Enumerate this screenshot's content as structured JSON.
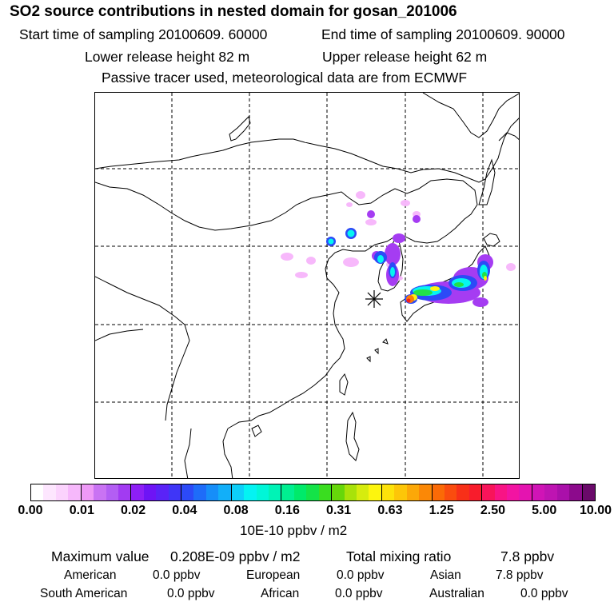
{
  "header": {
    "title": "SO2 source contributions in nested domain for gosan_201006",
    "start_time": "Start time of sampling 20100609. 60000",
    "end_time": "End time of sampling 20100609. 90000",
    "lower_height": "Lower release height   82 m",
    "upper_height": "Upper release height   62 m",
    "tracer_note": "Passive tracer used, meteorological data are from ECMWF"
  },
  "colorbar": {
    "tick_labels": [
      "0.00",
      "0.01",
      "0.02",
      "0.04",
      "0.08",
      "0.16",
      "0.31",
      "0.63",
      "1.25",
      "2.50",
      "5.00",
      "10.00"
    ],
    "units": "10E-10 ppbv / m2",
    "colors": [
      "#ffffff",
      "#fde6fe",
      "#fbd3fd",
      "#f6b8fb",
      "#ee99f7",
      "#c973f3",
      "#b35ef3",
      "#a23bf2",
      "#8d1ff5",
      "#6e14f5",
      "#5a23f7",
      "#3f36f7",
      "#2c4af7",
      "#1e6cf9",
      "#168ef9",
      "#12aff9",
      "#0ecff9",
      "#04f3f3",
      "#00f6d8",
      "#00f3b6",
      "#00ef91",
      "#00ea6a",
      "#14e348",
      "#3add20",
      "#66d70a",
      "#a8e20a",
      "#d6ec0e",
      "#fdf50e",
      "#fde20a",
      "#fdc608",
      "#fca808",
      "#fb8806",
      "#fb6a06",
      "#fa4c0e",
      "#f83018",
      "#f81c2c",
      "#f8145a",
      "#f81485",
      "#f214a2",
      "#e414b0",
      "#d014b6",
      "#be14b2",
      "#aa10aa",
      "#8c0a8c",
      "#6a0a6a"
    ]
  },
  "stats": {
    "max_label": "Maximum value",
    "max_value": "0.208E-09 ppbv / m2",
    "total_label": "Total mixing ratio",
    "total_value": "7.8 ppbv"
  },
  "regions": [
    {
      "name": "American",
      "value": "0.0 ppbv"
    },
    {
      "name": "European",
      "value": "0.0 ppbv"
    },
    {
      "name": "Asian",
      "value": "7.8 ppbv"
    },
    {
      "name": "South American",
      "value": "0.0 ppbv"
    },
    {
      "name": "African",
      "value": "0.0 ppbv"
    },
    {
      "name": "Australian",
      "value": "0.0 ppbv"
    }
  ],
  "map": {
    "receptor_marker": "asterisk-icon",
    "plume_colors": {
      "low": "#f7b5fb",
      "mid": "#a53cf2",
      "blue": "#2c4af7",
      "cyan": "#06f5f0",
      "green": "#22e048",
      "yellow": "#fdf30e",
      "orange": "#fb7a06",
      "red": "#f8201c"
    }
  }
}
